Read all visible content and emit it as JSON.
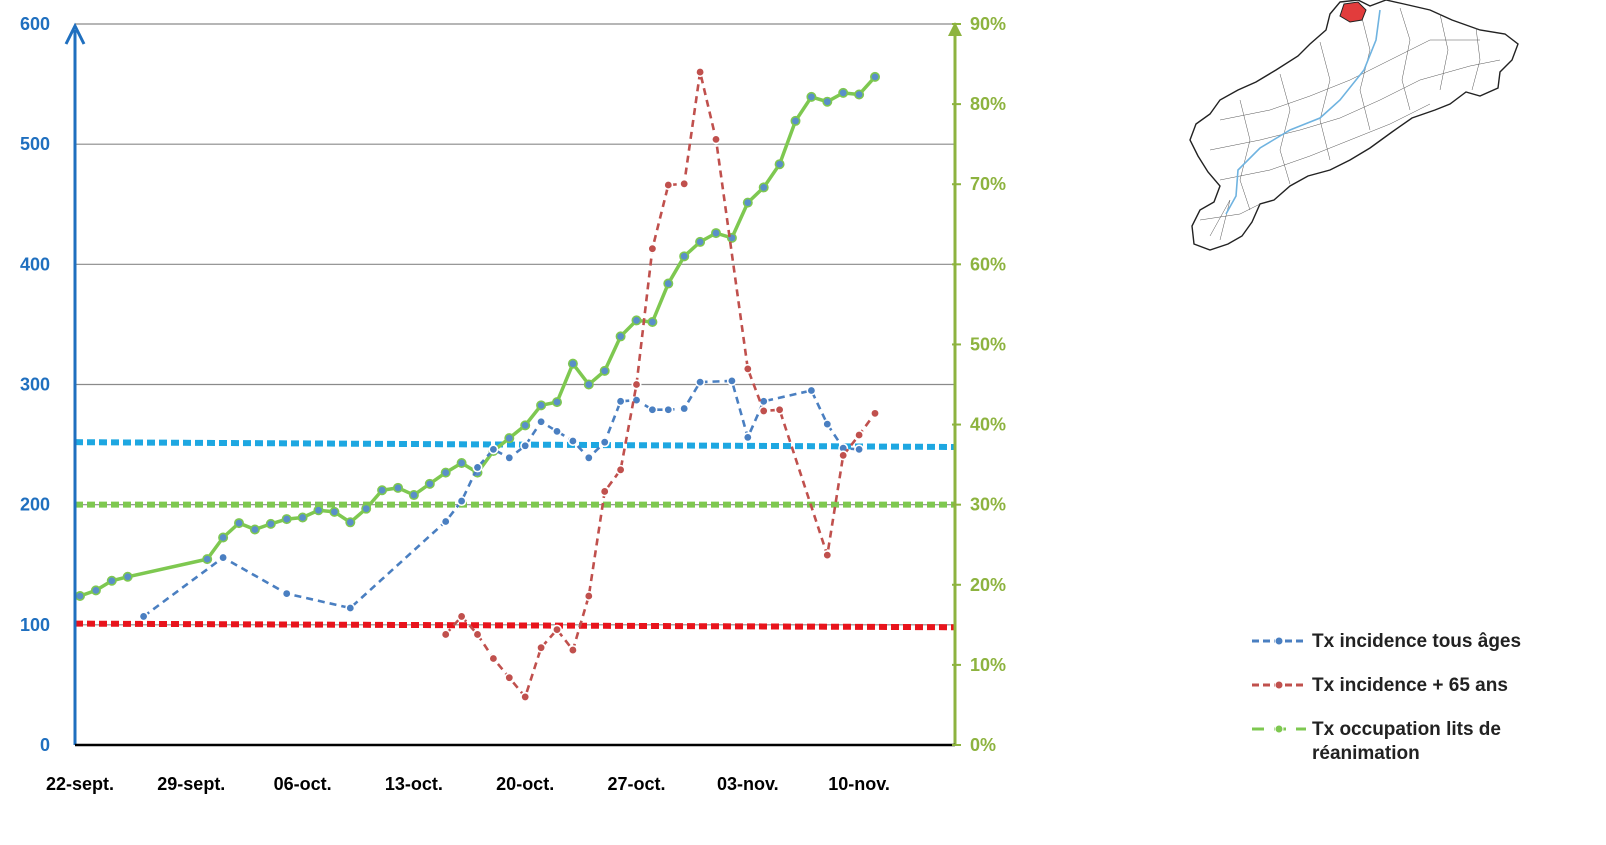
{
  "colors": {
    "left_axis": "#1f6fbf",
    "right_axis": "#8db33f",
    "incidence_all": "#4a7fc1",
    "incidence_65": "#c0504d",
    "reanimation": "#7ec850",
    "threshold_blue": "#1ea7e1",
    "threshold_green": "#7ec850",
    "threshold_red": "#e8141c",
    "map_highlight": "#e23c3c",
    "map_river": "#6fb3e0"
  },
  "map": {
    "icon": "region-map-icon"
  },
  "legend": [
    {
      "label": "Tx incidence tous âges",
      "series": "incidence_all"
    },
    {
      "label": "Tx incidence + 65 ans",
      "series": "incidence_65"
    },
    {
      "label": "Tx occupation lits de réanimation",
      "series": "reanimation"
    }
  ],
  "chart_data": {
    "type": "line",
    "grid": true,
    "x_ticks": [
      "22-sept.",
      "29-sept.",
      "06-oct.",
      "13-oct.",
      "20-oct.",
      "27-oct.",
      "03-nov.",
      "10-nov."
    ],
    "x_range": [
      "2020-09-22",
      "2020-11-16"
    ],
    "left_axis": {
      "ticks": [
        "0",
        "100",
        "200",
        "300",
        "400",
        "500",
        "600"
      ],
      "ylim": [
        0,
        600
      ]
    },
    "right_axis": {
      "ticks": [
        "0%",
        "10%",
        "20%",
        "30%",
        "40%",
        "50%",
        "60%",
        "70%",
        "80%",
        "90%"
      ],
      "ylim": [
        0,
        90
      ]
    },
    "thresholds": [
      {
        "axis": "left",
        "y_start": 252,
        "y_end": 248,
        "color": "#1ea7e1"
      },
      {
        "axis": "left",
        "y_start": 200,
        "y_end": 200,
        "color": "#7ec850"
      },
      {
        "axis": "left",
        "y_start": 101,
        "y_end": 98,
        "color": "#e8141c"
      }
    ],
    "series": [
      {
        "name": "Tx incidence tous âges",
        "key": "incidence_all",
        "axis": "left",
        "dash": "dashed",
        "x": [
          "2020-09-26",
          "2020-10-01",
          "2020-10-05",
          "2020-10-09",
          "2020-10-15",
          "2020-10-16",
          "2020-10-17",
          "2020-10-18",
          "2020-10-19",
          "2020-10-20",
          "2020-10-21",
          "2020-10-22",
          "2020-10-23",
          "2020-10-24",
          "2020-10-25",
          "2020-10-26",
          "2020-10-27",
          "2020-10-28",
          "2020-10-29",
          "2020-10-30",
          "2020-10-31",
          "2020-11-02",
          "2020-11-03",
          "2020-11-04",
          "2020-11-07",
          "2020-11-08",
          "2020-11-09",
          "2020-11-10"
        ],
        "y": [
          107,
          156,
          126,
          114,
          186,
          203,
          231,
          246,
          239,
          249,
          269,
          261,
          253,
          239,
          252,
          286,
          287,
          279,
          279,
          280,
          302,
          303,
          256,
          286,
          295,
          267,
          247,
          246
        ]
      },
      {
        "name": "Tx incidence + 65 ans",
        "key": "incidence_65",
        "axis": "left",
        "dash": "dashed",
        "x": [
          "2020-10-15",
          "2020-10-16",
          "2020-10-17",
          "2020-10-18",
          "2020-10-19",
          "2020-10-20",
          "2020-10-21",
          "2020-10-22",
          "2020-10-23",
          "2020-10-24",
          "2020-10-25",
          "2020-10-26",
          "2020-10-27",
          "2020-10-28",
          "2020-10-29",
          "2020-10-30",
          "2020-10-31",
          "2020-11-01",
          "2020-11-03",
          "2020-11-04",
          "2020-11-05",
          "2020-11-08",
          "2020-11-09",
          "2020-11-10",
          "2020-11-11"
        ],
        "y": [
          92,
          107,
          92,
          72,
          56,
          40,
          81,
          96,
          79,
          124,
          211,
          229,
          300,
          413,
          466,
          467,
          560,
          504,
          313,
          278,
          279,
          158,
          241,
          258,
          276
        ]
      },
      {
        "name": "Tx occupation lits de réanimation",
        "key": "reanimation",
        "axis": "right",
        "dash": "solid",
        "x": [
          "2020-09-22",
          "2020-09-23",
          "2020-09-24",
          "2020-09-25",
          "2020-09-30",
          "2020-10-01",
          "2020-10-02",
          "2020-10-03",
          "2020-10-04",
          "2020-10-05",
          "2020-10-06",
          "2020-10-07",
          "2020-10-08",
          "2020-10-09",
          "2020-10-10",
          "2020-10-11",
          "2020-10-12",
          "2020-10-13",
          "2020-10-14",
          "2020-10-15",
          "2020-10-16",
          "2020-10-17",
          "2020-10-18",
          "2020-10-19",
          "2020-10-20",
          "2020-10-21",
          "2020-10-22",
          "2020-10-23",
          "2020-10-24",
          "2020-10-25",
          "2020-10-26",
          "2020-10-27",
          "2020-10-28",
          "2020-10-29",
          "2020-10-30",
          "2020-10-31",
          "2020-11-01",
          "2020-11-02",
          "2020-11-03",
          "2020-11-04",
          "2020-11-05",
          "2020-11-06",
          "2020-11-07",
          "2020-11-08",
          "2020-11-09",
          "2020-11-10",
          "2020-11-11"
        ],
        "y": [
          18.6,
          19.3,
          20.5,
          21.0,
          23.2,
          25.9,
          27.7,
          26.9,
          27.6,
          28.2,
          28.4,
          29.3,
          29.1,
          27.8,
          29.5,
          31.8,
          32.1,
          31.2,
          32.6,
          34.0,
          35.2,
          34.0,
          36.7,
          38.3,
          39.9,
          42.4,
          42.8,
          47.6,
          45.0,
          46.7,
          51.0,
          53.0,
          52.8,
          57.6,
          61.0,
          62.8,
          63.9,
          63.3,
          67.7,
          69.6,
          72.5,
          77.9,
          80.9,
          80.3,
          81.4,
          81.2,
          83.4
        ]
      }
    ]
  }
}
